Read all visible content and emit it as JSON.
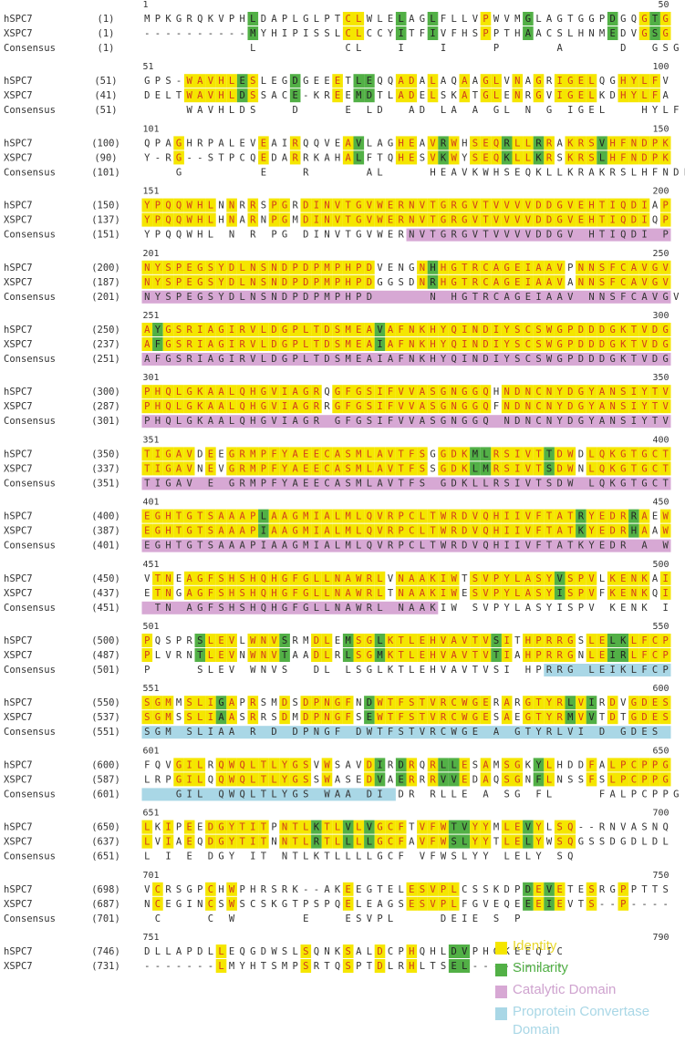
{
  "colors": {
    "identity": "#f5e600",
    "similarity": "#52b046",
    "catalytic": "#d7a8d4",
    "proprotein": "#a9d7e6",
    "identity_text": "#d23a1e",
    "similarity_text": "#222222",
    "plain_text": "#333333"
  },
  "labels": {
    "seq1": "hSPC7",
    "seq2": "XSPC7",
    "consensus": "Consensus"
  },
  "legend": [
    {
      "key": "identity",
      "label": "Identity",
      "color": "#f5e600",
      "text_color": "#e8d72a"
    },
    {
      "key": "similarity",
      "label": "Similarity",
      "color": "#52b046",
      "text_color": "#52b046"
    },
    {
      "key": "catalytic",
      "label": "Catalytic Domain",
      "color": "#d7a8d4",
      "text_color": "#cfa3cf"
    },
    {
      "key": "proprotein",
      "label": "Proprotein Convertase Domain",
      "color": "#a9d7e6",
      "text_color": "#a9d7e6"
    }
  ],
  "blocks": [
    {
      "start": "1",
      "end": "50",
      "n1": "(1)",
      "n2": "(1)",
      "nc": "(1)",
      "s1": "MPKGRQKVPHLDAPLGLPTCLWLELAGLFLLVPWVMGLAGTGGPDGQGTG",
      "s2": "----------MYHIPISSLCLCCYITFIVFHSPPTHAACSLHNMEDVGSG",
      "cons": "          L        CL   I   I    P     A     D  GSG",
      "domains": []
    },
    {
      "start": "51",
      "end": "100",
      "n1": "(51)",
      "n2": "(41)",
      "nc": "(51)",
      "s1": "GPS-WAVHLESLEGDGEEETLEQQADALAQAAGLVNAGRIGELQGHYLFV",
      "s2": "DELTWAVHLDSSACE-KREEMDTLADELSKATGLENRGVIGELKDHYLFA",
      "cons": "    WAVHLDS   D    E LD  AD LA A GL N G IGEL   HYLF ",
      "domains": []
    },
    {
      "start": "101",
      "end": "150",
      "n1": "(100)",
      "n2": "(90)",
      "nc": "(101)",
      "s1": "QPAGHRPALEVEAIRQQVEAVLAGHEAVRWHSEQRLLRRAKRSVHFNDPK",
      "s2": "Y-RG--STPCQEDARRKAHALFTQHESVKWYSEQKLLKRSKRSLHFNDPK",
      "cons": "   G       E   R     AL    HEAVKWHSEQKLLKRAKRSLHFNDPK",
      "domains": []
    },
    {
      "start": "151",
      "end": "200",
      "n1": "(150)",
      "n2": "(137)",
      "nc": "(151)",
      "s1": "YPQQWHLNNRRSPGRDINVTGVWERNVTGRGVTVVVVDDGVEHTIQDIAP",
      "s2": "YPQQWHLHNARNPGMDINVTGVWERNVTGRGVTVVVVDDGVEHTIQDIQP",
      "cons": "YPQQWHL N R PG DINVTGVWERNVTGRGVTVVVVDDGV HTIQDI P",
      "domains": [
        {
          "type": "catalytic",
          "from": 25,
          "to": 50
        }
      ]
    },
    {
      "start": "201",
      "end": "250",
      "n1": "(200)",
      "n2": "(187)",
      "nc": "(201)",
      "s1": "NYSPEGSYDLNSNDPDPMPHPDVENGNHHGTRCAGEIAAVPNNSFCAVGV",
      "s2": "NYSPEGSYDLNSNDPDPMPHPDGGSDNRHGTRCAGEIAAVANNSFCAVGV",
      "cons": "NYSPEGSYDLNSNDPDPMPHPD     N HGTRCAGEIAAV NNSFCAVGV",
      "domains": [
        {
          "type": "catalytic",
          "from": 0,
          "to": 50
        }
      ]
    },
    {
      "start": "251",
      "end": "300",
      "n1": "(250)",
      "n2": "(237)",
      "nc": "(251)",
      "s1": "AYGSRIAGIRVLDGPLTDSMEAVAFNKHYQINDIYSCSWGPDDDGKTVDG",
      "s2": "AFGSRIAGIRVLDGPLTDSMEAIAFNKHYQINDIYSCSWGPDDDGKTVDG",
      "cons": "AFGSRIAGIRVLDGPLTDSMEAIAFNKHYQINDIYSCSWGPDDDGKTVDG",
      "domains": [
        {
          "type": "catalytic",
          "from": 0,
          "to": 50
        }
      ]
    },
    {
      "start": "301",
      "end": "350",
      "n1": "(300)",
      "n2": "(287)",
      "nc": "(301)",
      "s1": "PHQLGKAALQHGVIAGRQGFGSIFVVASGNGGQHNDNCNYDGYANSIYTV",
      "s2": "PHQLGKAALQHGVIAGRRGFGSIFVVASGNGGQFNDNCNYDGYANSIYTV",
      "cons": "PHQLGKAALQHGVIAGR GFGSIFVVASGNGGQ NDNCNYDGYANSIYTV",
      "domains": [
        {
          "type": "catalytic",
          "from": 0,
          "to": 50
        }
      ]
    },
    {
      "start": "351",
      "end": "400",
      "n1": "(350)",
      "n2": "(337)",
      "nc": "(351)",
      "s1": "TIGAVDEEGRMPFYAEECASMLAVTFSGGDKMLRSIVTTDWDLQKGTGCT",
      "s2": "TIGAVNEVGRMPFYAEECASMLAVTFSSGDKLMRSIVTSDWNLQKGTGCT",
      "cons": "TIGAV E GRMPFYAEECASMLAVTFS GDKLLRSIVTSDW LQKGTGCT",
      "domains": [
        {
          "type": "catalytic",
          "from": 0,
          "to": 50
        }
      ]
    },
    {
      "start": "401",
      "end": "450",
      "n1": "(400)",
      "n2": "(387)",
      "nc": "(401)",
      "s1": "EGHTGTSAAAPLAAGMIALMLQVRPCLTWRDVQHIIVFTATRYEDRRAEW",
      "s2": "EGHTGTSAAAPIAAGMIALMLQVRPCLTWRDVQHIIVFTATKYEDRHAAW",
      "cons": "EGHTGTSAAAPIAAGMIALMLQVRPCLTWRDVQHIIVFTATKYEDR A W",
      "domains": [
        {
          "type": "catalytic",
          "from": 0,
          "to": 50
        }
      ]
    },
    {
      "start": "451",
      "end": "500",
      "n1": "(450)",
      "n2": "(437)",
      "nc": "(451)",
      "s1": "VTNEAGFSHSHQHGFGLLNAWRLVNAAKIWTSVPYLASYVSPVLKENKAI",
      "s2": "ETNGAGFSHSHQHGFGLLNAWRLTNAAKIWESVPYLASYISPVFKENKQI",
      "cons": " TN AGFSHSHQHGFGLLNAWRL NAAKIW SVPYLASYISPV KENK I",
      "domains": [
        {
          "type": "catalytic",
          "from": 0,
          "to": 28
        }
      ]
    },
    {
      "start": "501",
      "end": "550",
      "n1": "(500)",
      "n2": "(487)",
      "nc": "(501)",
      "s1": "PQSPRSLEVLWNVSRMDLEMSGLKTLEHVAVTVSITHPRRGSLELKLFCP",
      "s2": "PLVRNTLEVNWNVTAADLRLSGMKTLEHVAVTVTIAHPRRGNLEIRLFCP",
      "cons": "P    SLEV WNVS  DL LSGLKTLEHVAVTVSI HPRRG LEIKLFCP",
      "domains": [
        {
          "type": "proprotein",
          "from": 38,
          "to": 50
        }
      ]
    },
    {
      "start": "551",
      "end": "600",
      "n1": "(550)",
      "n2": "(537)",
      "nc": "(551)",
      "s1": "SGMMSLIGAPRSMDSDPNGFNDWTFSTVRCWGERARGTYRLVIRDVGDES",
      "s2": "SGMSSLIAASRRSDMDPNGFSEWTFSTVRCWGESAEGTYRMVVTDTGDES",
      "cons": "SGM SLIAA R D DPNGF DWTFSTVRCWGE A GTYRLVI D GDES",
      "domains": [
        {
          "type": "proprotein",
          "from": 0,
          "to": 50
        }
      ]
    },
    {
      "start": "601",
      "end": "650",
      "n1": "(600)",
      "n2": "(587)",
      "nc": "(601)",
      "s1": "FQVGILRQWQLTLYGSVWSAVDIRDRQRLLESAMSGKYLHDDFALPCPPG",
      "s2": "LRPGILQQWQLTLYGSSWASEDVAERRRVVEDAQSGNFLNSSFSLPCPPG",
      "cons": "   GIL QWQLTLYGS WAA DI DR RLLE A SG FL    FALPCPPG",
      "domains": [
        {
          "type": "proprotein",
          "from": 0,
          "to": 24
        }
      ]
    },
    {
      "start": "651",
      "end": "700",
      "n1": "(650)",
      "n2": "(637)",
      "nc": "(651)",
      "s1": "LKIPEEDGYTITPNTLKTLVLVGCFTVFWTVYYMLEVYLSQ--RNVASNQ",
      "s2": "LVIAEQDGYTITNNTLRTLLLLGCFAVFWSLYYTLELYWSQGSSDGDLDL",
      "cons": "L I E DGY IT NTLKTLLLLGCF VFWSLYY LELY SQ",
      "domains": []
    },
    {
      "start": "701",
      "end": "750",
      "n1": "(698)",
      "n2": "(687)",
      "nc": "(701)",
      "s1": "VCRSGPCHWPHRSRK--AKEEGTELESVPLCSSKDPDEVETESRGPPTTS",
      "s2": "NCEGINCSWSCSKGTPSPQELEAGSESVPLFGVEQEEEIEVTS--P----",
      "cons": " C    C W      E   ESVPL    DEIE S P",
      "domains": []
    },
    {
      "start": "751",
      "end": "790",
      "n1": "(746)",
      "n2": "(731)",
      "nc": null,
      "s1": "DLLAPDLLEQGDWSLSQNKSALDCPHQHLDVPHGKEEQIC",
      "s2": "-------LMYHTSMPSRTQSPTDLRHLTSEL---------",
      "cons": null,
      "domains": []
    }
  ]
}
